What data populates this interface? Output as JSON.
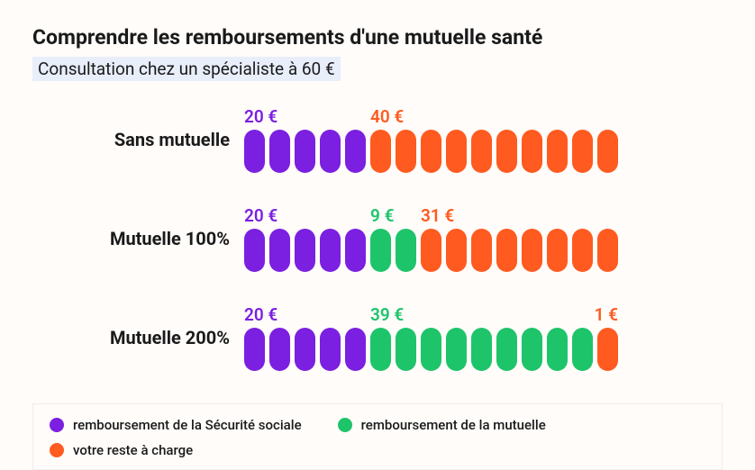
{
  "type": "infographic",
  "background_color": "#fffcfa",
  "title": "Comprendre les remboursements d'une mutuelle santé",
  "title_fontsize": 23,
  "subtitle": "Consultation chez un spécialiste à 60 €",
  "subtitle_bg": "#e8eefa",
  "subtitle_fontsize": 19,
  "total_pills": 15,
  "pill_width": 23,
  "pill_height": 48,
  "pill_gap": 5,
  "pill_radius": 12,
  "colors": {
    "securite": "#7b1fe0",
    "mutuelle": "#1ec46a",
    "reste": "#ff5a1f"
  },
  "rows": [
    {
      "label": "Sans mutuelle",
      "segments": [
        {
          "key": "securite",
          "pills": 5,
          "amount": "20 €"
        },
        {
          "key": "reste",
          "pills": 10,
          "amount": "40 €"
        }
      ]
    },
    {
      "label": "Mutuelle 100%",
      "segments": [
        {
          "key": "securite",
          "pills": 5,
          "amount": "20 €"
        },
        {
          "key": "mutuelle",
          "pills": 2,
          "amount": "9 €"
        },
        {
          "key": "reste",
          "pills": 8,
          "amount": "31 €"
        }
      ]
    },
    {
      "label": "Mutuelle 200%",
      "segments": [
        {
          "key": "securite",
          "pills": 5,
          "amount": "20 €"
        },
        {
          "key": "mutuelle",
          "pills": 9,
          "amount": "39 €"
        },
        {
          "key": "reste",
          "pills": 1,
          "amount": "1 €"
        }
      ]
    }
  ],
  "legend": [
    {
      "key": "securite",
      "text": "remboursement de la Sécurité sociale"
    },
    {
      "key": "mutuelle",
      "text": "remboursement de la mutuelle"
    },
    {
      "key": "reste",
      "text": "votre reste à charge"
    }
  ]
}
